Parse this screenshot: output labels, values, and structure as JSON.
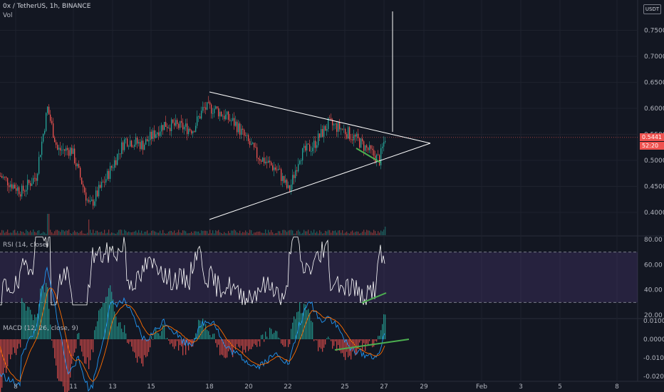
{
  "header": {
    "symbol_title": "0x / TetherUS, 1h, BINANCE",
    "volume_label": "Vol",
    "currency_badge": "USDT"
  },
  "price_axis": {
    "ticks": [
      "0.7500",
      "0.7000",
      "0.6500",
      "0.6000",
      "0.5500",
      "0.5000",
      "0.4500",
      "0.4000"
    ],
    "current_price": "0.5441",
    "countdown": "52:20"
  },
  "rsi": {
    "label": "RSI (14, close)",
    "ticks": [
      "80.00",
      "60.00",
      "40.00",
      "20.00"
    ],
    "upper_band": 70,
    "lower_band": 30
  },
  "macd": {
    "label": "MACD (12, 26, close, 9)",
    "ticks": [
      "0.0100",
      "0.0000",
      "-0.0100",
      "-0.0200"
    ]
  },
  "time_axis": {
    "ticks": [
      "8",
      "11",
      "13",
      "15",
      "18",
      "20",
      "22",
      "25",
      "27",
      "29",
      "Feb",
      "3",
      "5",
      "8"
    ]
  },
  "colors": {
    "background": "#131722",
    "up": "#26a69a",
    "down": "#ef5350",
    "rsi_fill": "#7e57c2",
    "trendline": "#ffffff",
    "divergence": "#4caf50"
  }
}
